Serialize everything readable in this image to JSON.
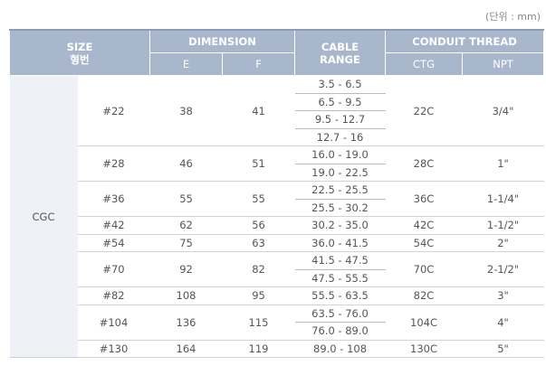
{
  "unit_note": "(단위 : mm)",
  "table": {
    "header": {
      "size": "SIZE",
      "size_kr": "형번",
      "dimension": "DIMENSION",
      "e": "E",
      "f": "F",
      "cable_range": [
        "CABLE",
        "RANGE"
      ],
      "conduit_thread": "CONDUIT THREAD",
      "ctg": "CTG",
      "npt": "NPT"
    },
    "group": "CGC",
    "rows": [
      {
        "model": "#22",
        "e": 38,
        "f": 41,
        "cable_ranges": [
          "3.5 - 6.5",
          "6.5 - 9.5",
          "9.5 - 12.7",
          "12.7 - 16"
        ],
        "ctg": "22C",
        "npt": "3/4\""
      },
      {
        "model": "#28",
        "e": 46,
        "f": 51,
        "cable_ranges": [
          "16.0 - 19.0",
          "19.0 - 22.5"
        ],
        "ctg": "28C",
        "npt": "1\""
      },
      {
        "model": "#36",
        "e": 55,
        "f": 55,
        "cable_ranges": [
          "22.5 - 25.5",
          "25.5 - 30.2"
        ],
        "ctg": "36C",
        "npt": "1-1/4\""
      },
      {
        "model": "#42",
        "e": 62,
        "f": 56,
        "cable_ranges": [
          "30.2 - 35.0"
        ],
        "ctg": "42C",
        "npt": "1-1/2\""
      },
      {
        "model": "#54",
        "e": 75,
        "f": 63,
        "cable_ranges": [
          "36.0 - 41.5"
        ],
        "ctg": "54C",
        "npt": "2\""
      },
      {
        "model": "#70",
        "e": 92,
        "f": 82,
        "cable_ranges": [
          "41.5 - 47.5",
          "47.5 - 55.5"
        ],
        "ctg": "70C",
        "npt": "2-1/2\""
      },
      {
        "model": "#82",
        "e": 108,
        "f": 95,
        "cable_ranges": [
          "55.5 - 63.5"
        ],
        "ctg": "82C",
        "npt": "3\""
      },
      {
        "model": "#104",
        "e": 136,
        "f": 115,
        "cable_ranges": [
          "63.5 - 76.0",
          "76.0 - 89.0"
        ],
        "ctg": "104C",
        "npt": "4\""
      },
      {
        "model": "#130",
        "e": 164,
        "f": 119,
        "cable_ranges": [
          "89.0 - 108"
        ],
        "ctg": "130C",
        "npt": "5\""
      }
    ]
  }
}
